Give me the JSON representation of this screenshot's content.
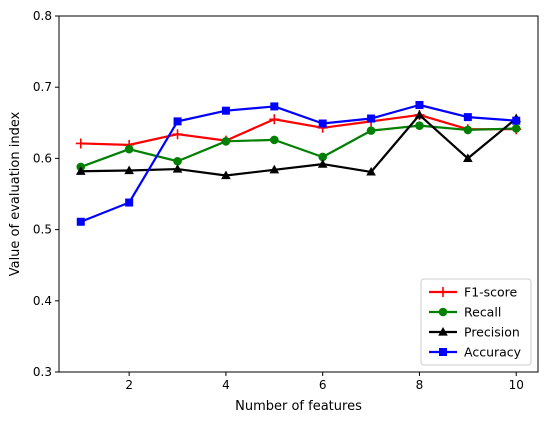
{
  "chart_data": {
    "type": "line",
    "title": "",
    "xlabel": "Number of features",
    "ylabel": "Value of evaluation index",
    "xlim": [
      0.55,
      10.45
    ],
    "ylim": [
      0.3,
      0.8
    ],
    "xticks": [
      2,
      4,
      6,
      8,
      10
    ],
    "yticks": [
      0.3,
      0.4,
      0.5,
      0.6,
      0.7,
      0.8
    ],
    "grid": false,
    "legend_position": "bottom-right",
    "x": [
      1,
      2,
      3,
      4,
      5,
      6,
      7,
      8,
      9,
      10
    ],
    "series": [
      {
        "name": "F1-score",
        "color": "#ff0000",
        "marker": "plus",
        "values": [
          0.621,
          0.619,
          0.634,
          0.625,
          0.655,
          0.643,
          0.652,
          0.661,
          0.641,
          0.641
        ]
      },
      {
        "name": "Recall",
        "color": "#008000",
        "marker": "circle",
        "values": [
          0.588,
          0.613,
          0.596,
          0.624,
          0.626,
          0.602,
          0.639,
          0.646,
          0.64,
          0.642
        ]
      },
      {
        "name": "Precision",
        "color": "#000000",
        "marker": "triangle",
        "values": [
          0.582,
          0.583,
          0.585,
          0.576,
          0.584,
          0.592,
          0.581,
          0.661,
          0.6,
          0.656
        ]
      },
      {
        "name": "Accuracy",
        "color": "#0000ff",
        "marker": "square",
        "values": [
          0.511,
          0.538,
          0.652,
          0.667,
          0.673,
          0.649,
          0.656,
          0.675,
          0.658,
          0.653
        ]
      }
    ]
  }
}
